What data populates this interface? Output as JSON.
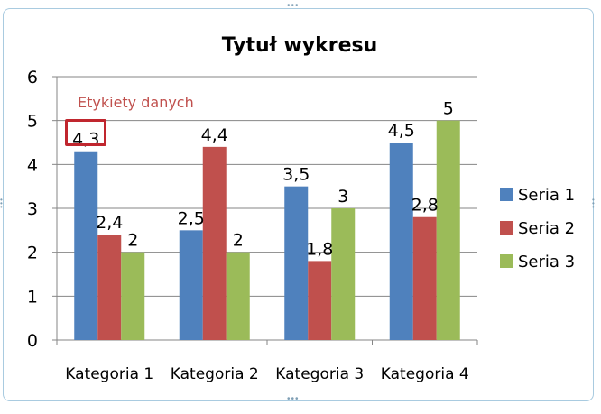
{
  "chart_data": {
    "type": "bar",
    "title": "Tytuł wykresu",
    "categories": [
      "Kategoria 1",
      "Kategoria 2",
      "Kategoria 3",
      "Kategoria 4"
    ],
    "series": [
      {
        "name": "Seria 1",
        "color": "#4f81bd",
        "values": [
          4.3,
          2.5,
          3.5,
          4.5
        ],
        "labels": [
          "4,3",
          "2,5",
          "3,5",
          "4,5"
        ]
      },
      {
        "name": "Seria 2",
        "color": "#c0504d",
        "values": [
          2.4,
          4.4,
          1.8,
          2.8
        ],
        "labels": [
          "2,4",
          "4,4",
          "1,8",
          "2,8"
        ]
      },
      {
        "name": "Seria 3",
        "color": "#9bbb59",
        "values": [
          2,
          2,
          3,
          5
        ],
        "labels": [
          "2",
          "2",
          "3",
          "5"
        ]
      }
    ],
    "ylim": [
      0,
      6
    ],
    "yticks": [
      "0",
      "1",
      "2",
      "3",
      "4",
      "5",
      "6"
    ],
    "grid": true,
    "legend": "right",
    "annotation": "Etykiety danych"
  }
}
